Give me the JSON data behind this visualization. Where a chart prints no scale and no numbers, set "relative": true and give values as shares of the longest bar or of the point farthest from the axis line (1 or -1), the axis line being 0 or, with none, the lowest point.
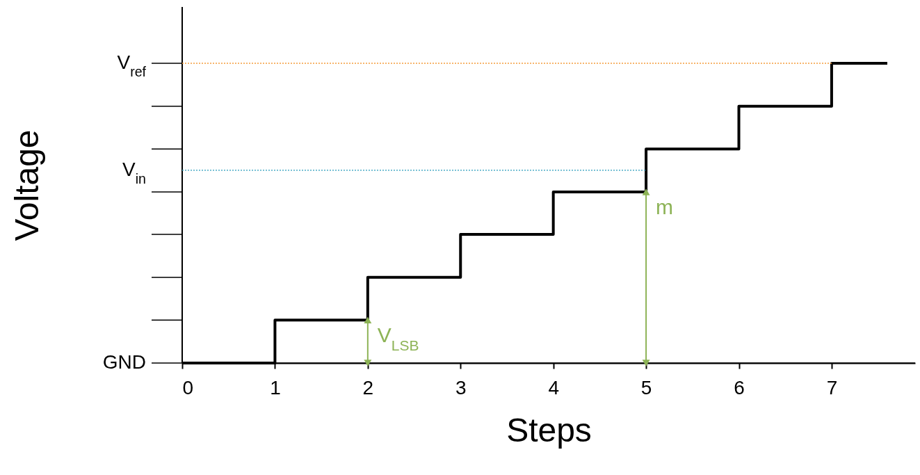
{
  "chart_data": {
    "type": "step",
    "xlabel": "Steps",
    "ylabel": "Voltage",
    "relative": true,
    "x": [
      0,
      1,
      2,
      3,
      4,
      5,
      6,
      7,
      7.6
    ],
    "series": [
      {
        "color": "#000000",
        "values": [
          0,
          0.143,
          0.286,
          0.429,
          0.571,
          0.714,
          0.857,
          1,
          1
        ]
      }
    ],
    "xlim": [
      0,
      7.9
    ],
    "xticks": [
      0,
      1,
      2,
      3,
      4,
      5,
      6,
      7
    ],
    "ref_lines": [
      {
        "axis": "y",
        "value": 0,
        "label": "GND",
        "color": "#000000",
        "line_style": "solid"
      },
      {
        "axis": "y",
        "value": 1,
        "label": "V$_{ref}$",
        "color": "#f59d3d",
        "line_style": "dotted"
      },
      {
        "axis": "y",
        "value": 0.643,
        "label": "V$_{in}$",
        "color": "#4bacc6",
        "line_style": "dotted"
      }
    ],
    "annotations": [
      {
        "text": "V$_{LSB}$",
        "x": 2,
        "y": 0.143
      },
      {
        "text": "m",
        "x": 5,
        "y": 0.571
      }
    ],
    "grid": false
  }
}
